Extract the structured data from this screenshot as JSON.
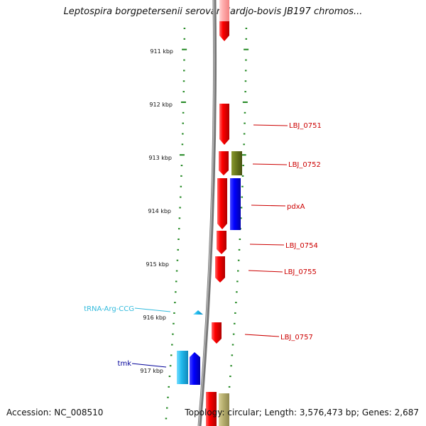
{
  "header": {
    "title": "Leptospira borgpetersenii serovar Hardjo-bovis JB197 chromos..."
  },
  "footer": {
    "accession": "Accession: NC_008510",
    "topology": "Topology: circular; Length: 3,576,473 bp; Genes: 2,687"
  },
  "ruler_labels": [
    "911 kbp",
    "912 kbp",
    "913 kbp",
    "914 kbp",
    "915 kbp",
    "916 kbp",
    "917 kbp"
  ],
  "genes": [
    {
      "label": "LBJ_0751",
      "color": "#cc0000"
    },
    {
      "label": "LBJ_0752",
      "color": "#cc0000"
    },
    {
      "label": "pdxA",
      "color": "#cc0000"
    },
    {
      "label": "LBJ_0754",
      "color": "#cc0000"
    },
    {
      "label": "LBJ_0755",
      "color": "#cc0000"
    },
    {
      "label": "LBJ_0757",
      "color": "#cc0000"
    },
    {
      "label": "tRNA-Arg-CCG",
      "color": "#33bbdd"
    },
    {
      "label": "tmk",
      "color": "#000099"
    }
  ],
  "colors": {
    "forward_gene": "#ff0000",
    "olive_gene": "#6b7a1e",
    "blue_gene": "#0000ff",
    "cyan_gene": "#22bbee",
    "tan_gene": "#b8b070",
    "backbone": "#888888",
    "ruler_tick": "#228822"
  }
}
